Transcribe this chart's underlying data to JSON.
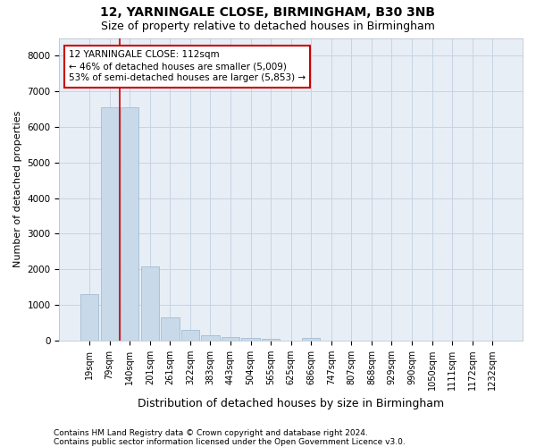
{
  "title1": "12, YARNINGALE CLOSE, BIRMINGHAM, B30 3NB",
  "title2": "Size of property relative to detached houses in Birmingham",
  "xlabel": "Distribution of detached houses by size in Birmingham",
  "ylabel": "Number of detached properties",
  "footnote1": "Contains HM Land Registry data © Crown copyright and database right 2024.",
  "footnote2": "Contains public sector information licensed under the Open Government Licence v3.0.",
  "bar_labels": [
    "19sqm",
    "79sqm",
    "140sqm",
    "201sqm",
    "261sqm",
    "322sqm",
    "383sqm",
    "443sqm",
    "504sqm",
    "565sqm",
    "625sqm",
    "686sqm",
    "747sqm",
    "807sqm",
    "868sqm",
    "929sqm",
    "990sqm",
    "1050sqm",
    "1111sqm",
    "1172sqm",
    "1232sqm"
  ],
  "bar_values": [
    1300,
    6550,
    6550,
    2075,
    650,
    290,
    150,
    110,
    70,
    50,
    0,
    70,
    0,
    0,
    0,
    0,
    0,
    0,
    0,
    0,
    0
  ],
  "bar_color": "#c8d9ea",
  "bar_edge_color": "#9ab5ce",
  "vline_x_idx": 1.5,
  "vline_color": "#cc0000",
  "annotation_text": "12 YARNINGALE CLOSE: 112sqm\n← 46% of detached houses are smaller (5,009)\n53% of semi-detached houses are larger (5,853) →",
  "annotation_box_color": "#cc0000",
  "annotation_box_fill": "white",
  "ylim": [
    0,
    8500
  ],
  "yticks": [
    0,
    1000,
    2000,
    3000,
    4000,
    5000,
    6000,
    7000,
    8000
  ],
  "grid_color": "#c8d4e4",
  "bg_color": "#e8eef6",
  "title1_fontsize": 10,
  "title2_fontsize": 9,
  "xlabel_fontsize": 9,
  "ylabel_fontsize": 8,
  "tick_fontsize": 7,
  "annotation_fontsize": 7.5,
  "footnote_fontsize": 6.5
}
